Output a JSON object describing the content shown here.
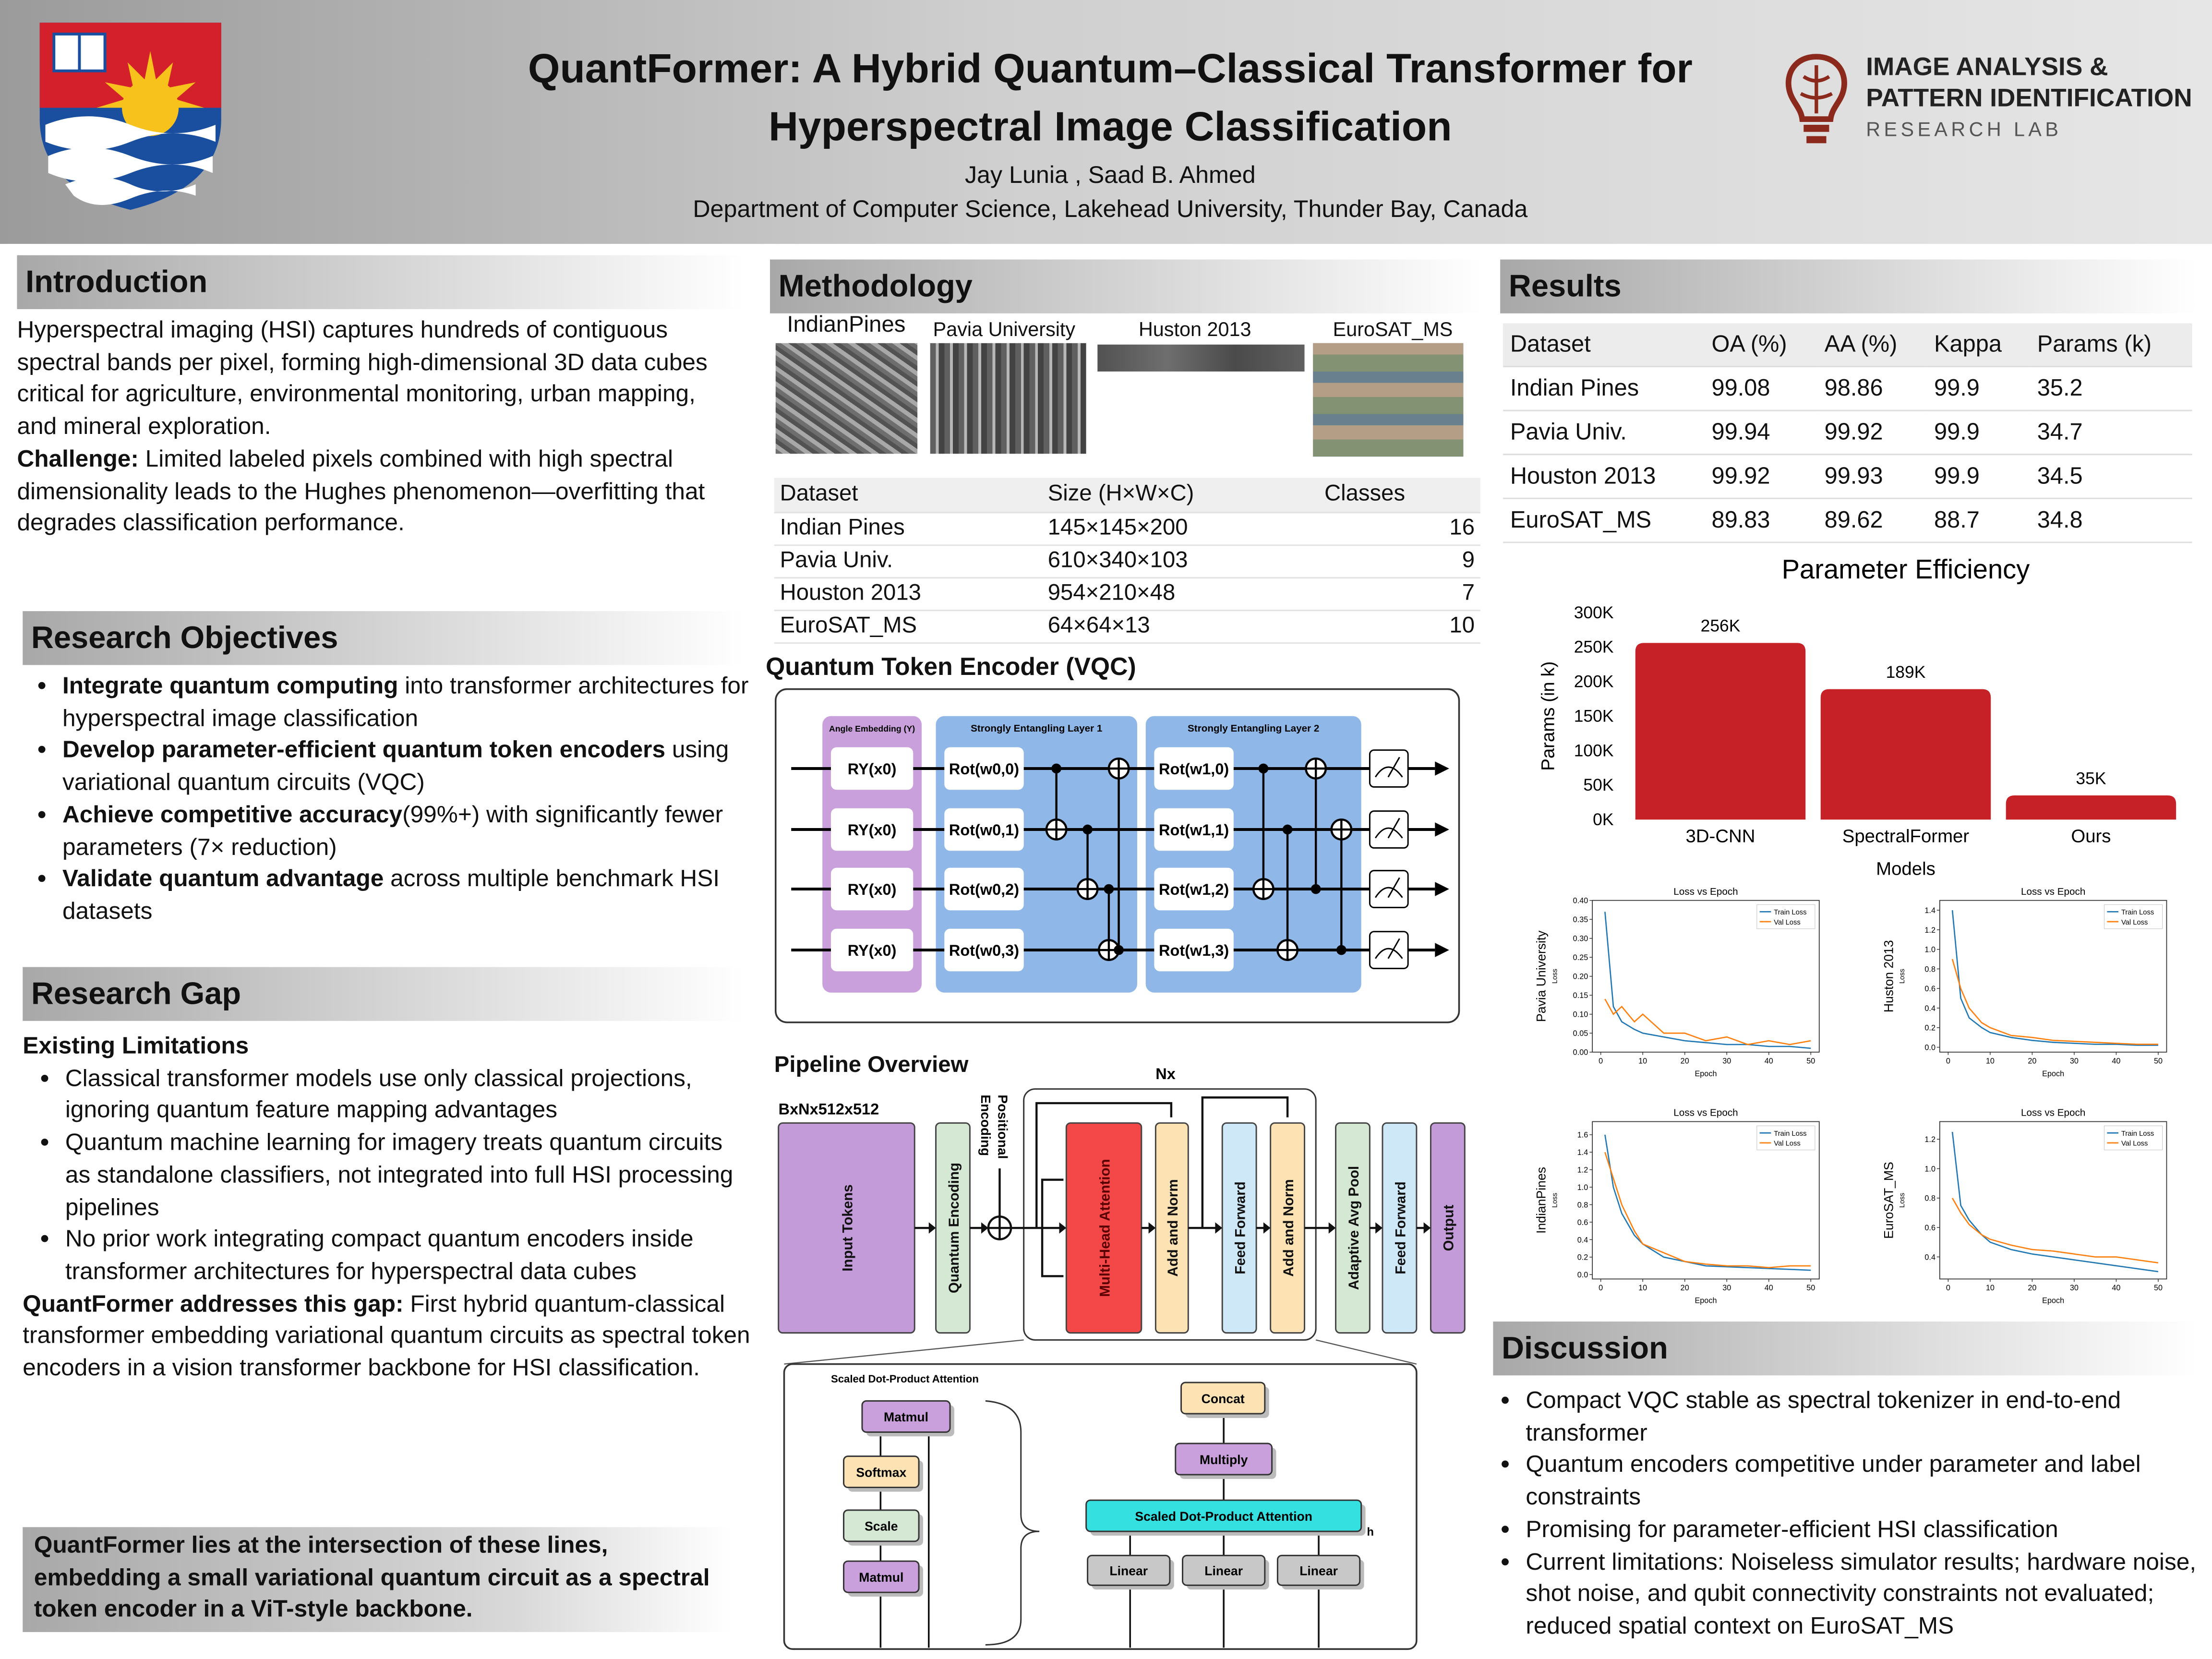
{
  "header": {
    "title_line1": "QuantFormer: A Hybrid Quantum–Classical Transformer for",
    "title_line2": "Hyperspectral Image Classification",
    "authors": "Jay Lunia , Saad B. Ahmed",
    "affiliation": "Department of Computer Science, Lakehead University, Thunder Bay, Canada",
    "lab_line1": "IMAGE ANALYSIS &",
    "lab_line2": "PATTERN IDENTIFICATION",
    "lab_line3": "RESEARCH LAB"
  },
  "introduction": {
    "heading": "Introduction",
    "paragraph": "Hyperspectral imaging (HSI) captures hundreds of contiguous spectral bands per pixel, forming high-dimensional 3D data cubes critical for agriculture, environmental monitoring, urban mapping, and mineral exploration.",
    "challenge_label": "Challenge:",
    "challenge_text": " Limited labeled pixels combined with high spectral dimensionality leads to the Hughes phenomenon—overfitting that degrades classification performance."
  },
  "objectives": {
    "heading": "Research Objectives",
    "items": [
      {
        "bold": "Integrate quantum computing",
        "text": " into transformer architectures for hyperspectral image classification"
      },
      {
        "bold": "Develop parameter-efficient quantum token encoders",
        "text": " using variational quantum circuits (VQC)"
      },
      {
        "bold": "Achieve competitive accuracy",
        "text": "(99%+) with significantly fewer parameters (7× reduction)"
      },
      {
        "bold": "Validate quantum advantage",
        "text": " across multiple benchmark HSI datasets"
      }
    ]
  },
  "gap": {
    "heading": "Research Gap",
    "subheading": "Existing Limitations",
    "items": [
      "Classical transformer models use only classical projections, ignoring quantum feature mapping advantages",
      "Quantum machine learning for imagery treats quantum circuits as standalone classifiers, not integrated into full HSI processing pipelines",
      "No prior work integrating compact quantum encoders inside transformer architectures for hyperspectral data cubes"
    ],
    "addresses_label": "QuantFormer addresses this gap:",
    "addresses_text": " First hybrid quantum-classical transformer embedding variational quantum circuits as spectral token encoders in a vision transformer backbone for HSI classification.",
    "callout": "QuantFormer lies at the intersection of these lines, embedding a small variational quantum circuit as a spectral token encoder in a ViT-style backbone."
  },
  "methodology": {
    "heading": "Methodology",
    "images": [
      "IndianPines",
      "Pavia University",
      "Huston 2013",
      "EuroSAT_MS"
    ],
    "table": {
      "header": [
        "Dataset",
        "Size (H×W×C)",
        "Classes"
      ],
      "rows": [
        [
          "Indian Pines",
          "145×145×200",
          16
        ],
        [
          "Pavia Univ.",
          "610×340×103",
          9
        ],
        [
          "Houston 2013",
          "954×210×48",
          7
        ],
        [
          "EuroSAT_MS",
          "64×64×13",
          10
        ]
      ]
    }
  },
  "vqc": {
    "title": "Quantum Token Encoder (VQC)",
    "embedding_label": "Angle Embedding (Y)",
    "layer1_label": "Strongly Entangling Layer 1",
    "layer2_label": "Strongly Entangling Layer 2",
    "embedding_gates": [
      "RY(x0)",
      "RY(x0)",
      "RY(x0)",
      "RY(x0)"
    ],
    "layer1_gates": [
      "Rot(w0,0)",
      "Rot(w0,1)",
      "Rot(w0,2)",
      "Rot(w0,3)"
    ],
    "layer2_gates": [
      "Rot(w1,0)",
      "Rot(w1,1)",
      "Rot(w1,2)",
      "Rot(w1,3)"
    ]
  },
  "pipeline": {
    "title": "Pipeline Overview",
    "input_shape": "BxNx512x512",
    "repeat_label": "Nx",
    "positional": [
      "Positional",
      "Encoding"
    ],
    "blocks": [
      "Input Tokens",
      "Quantum Encoding",
      "Multi-Head Attention",
      "Add and Norm",
      "Feed Forward",
      "Add and Norm",
      "Adaptive Avg Pool",
      "Feed Forward",
      "Output"
    ],
    "sdpa": {
      "title": "Scaled Dot-Product Attention",
      "steps": [
        "Matmul",
        "Softmax",
        "Scale",
        "Matmul"
      ]
    },
    "mha": {
      "concat": "Concat",
      "multiply": "Multiply",
      "attention": "Scaled Dot-Product Attention",
      "linear": [
        "Linear",
        "Linear",
        "Linear"
      ],
      "heads": "h"
    }
  },
  "results": {
    "heading": "Results",
    "table": {
      "header": [
        "Dataset",
        "OA (%)",
        "AA (%)",
        "Kappa",
        "Params (k)"
      ],
      "rows": [
        [
          "Indian Pines",
          99.08,
          98.86,
          99.9,
          35.2
        ],
        [
          "Pavia Univ.",
          99.94,
          99.92,
          99.9,
          34.7
        ],
        [
          "Houston 2013",
          99.92,
          99.93,
          99.9,
          34.5
        ],
        [
          "EuroSAT_MS",
          89.83,
          89.62,
          88.7,
          34.8
        ]
      ]
    }
  },
  "chart_data": [
    {
      "type": "bar",
      "title": "Parameter Efficiency",
      "xlabel": "Models",
      "ylabel": "Params (in k)",
      "categories": [
        "3D-CNN",
        "SpectralFormer",
        "Ours"
      ],
      "values": [
        256,
        189,
        35
      ],
      "value_labels": [
        "256K",
        "189K",
        "35K"
      ],
      "color": "#c62127",
      "ylim": [
        0,
        300
      ],
      "yticks": [
        {
          "value": 0,
          "label": "0K"
        },
        {
          "value": 50,
          "label": "50K"
        },
        {
          "value": 100,
          "label": "100K"
        },
        {
          "value": 150,
          "label": "150K"
        },
        {
          "value": 200,
          "label": "200K"
        },
        {
          "value": 250,
          "label": "250K"
        },
        {
          "value": 300,
          "label": "300K"
        }
      ]
    },
    {
      "type": "line",
      "title": "Loss vs Epoch",
      "ylabel": "Pavia University",
      "ylabel_small": "Loss",
      "xlabel": "Epoch",
      "x": [
        1,
        3,
        5,
        8,
        10,
        15,
        20,
        25,
        30,
        35,
        40,
        45,
        50
      ],
      "xlim": [
        -2,
        52
      ],
      "xticks": [
        0,
        10,
        20,
        30,
        40,
        50
      ],
      "ylim": [
        0,
        0.4
      ],
      "yticks": [
        {
          "value": 0,
          "label": "0.00"
        },
        0.05,
        {
          "value": 0.1,
          "label": "0.10"
        },
        0.15,
        {
          "value": 0.2,
          "label": "0.20"
        },
        0.25,
        {
          "value": 0.3,
          "label": "0.30"
        },
        0.35,
        {
          "value": 0.4,
          "label": "0.40"
        }
      ],
      "series": [
        {
          "name": "Train Loss",
          "color": "#1f77b4",
          "values": [
            0.37,
            0.12,
            0.08,
            0.06,
            0.05,
            0.04,
            0.03,
            0.025,
            0.02,
            0.02,
            0.015,
            0.015,
            0.01
          ]
        },
        {
          "name": "Val Loss",
          "color": "#ff7f0e",
          "values": [
            0.14,
            0.1,
            0.12,
            0.08,
            0.1,
            0.05,
            0.05,
            0.03,
            0.04,
            0.02,
            0.03,
            0.02,
            0.03
          ]
        }
      ]
    },
    {
      "type": "line",
      "title": "Loss vs Epoch",
      "ylabel": "Huston 2013",
      "ylabel_small": "Loss",
      "xlabel": "Epoch",
      "x": [
        1,
        3,
        5,
        8,
        10,
        15,
        20,
        25,
        30,
        35,
        40,
        45,
        50
      ],
      "xlim": [
        -2,
        52
      ],
      "xticks": [
        0,
        10,
        20,
        30,
        40,
        50
      ],
      "ylim": [
        -0.05,
        1.5
      ],
      "yticks": [
        {
          "value": 0,
          "label": "0.0"
        },
        0.2,
        0.4,
        0.6,
        0.8,
        {
          "value": 1,
          "label": "1.0"
        },
        1.2,
        1.4
      ],
      "series": [
        {
          "name": "Train Loss",
          "color": "#1f77b4",
          "values": [
            1.4,
            0.5,
            0.3,
            0.2,
            0.15,
            0.1,
            0.07,
            0.05,
            0.04,
            0.03,
            0.03,
            0.02,
            0.02
          ]
        },
        {
          "name": "Val Loss",
          "color": "#ff7f0e",
          "values": [
            0.9,
            0.6,
            0.4,
            0.25,
            0.2,
            0.12,
            0.1,
            0.07,
            0.06,
            0.05,
            0.04,
            0.03,
            0.03
          ]
        }
      ]
    },
    {
      "type": "line",
      "title": "Loss vs Epoch",
      "ylabel": "IndianPines",
      "ylabel_small": "Loss",
      "xlabel": "Epoch",
      "x": [
        1,
        3,
        5,
        8,
        10,
        15,
        20,
        25,
        30,
        35,
        40,
        45,
        50
      ],
      "xlim": [
        -2,
        52
      ],
      "xticks": [
        0,
        10,
        20,
        30,
        40,
        50
      ],
      "ylim": [
        -0.05,
        1.75
      ],
      "yticks": [
        {
          "value": 0,
          "label": "0.0"
        },
        0.2,
        0.4,
        0.6,
        0.8,
        {
          "value": 1,
          "label": "1.0"
        },
        1.2,
        1.4,
        1.6
      ],
      "series": [
        {
          "name": "Train Loss",
          "color": "#1f77b4",
          "values": [
            1.6,
            1.0,
            0.7,
            0.45,
            0.35,
            0.2,
            0.15,
            0.1,
            0.09,
            0.08,
            0.07,
            0.06,
            0.05
          ]
        },
        {
          "name": "Val Loss",
          "color": "#ff7f0e",
          "values": [
            1.4,
            1.1,
            0.8,
            0.5,
            0.35,
            0.25,
            0.15,
            0.12,
            0.1,
            0.1,
            0.08,
            0.1,
            0.1
          ]
        }
      ]
    },
    {
      "type": "line",
      "title": "Loss vs Epoch",
      "ylabel": "EuroSAT_MS",
      "ylabel_small": "Loss",
      "xlabel": "Epoch",
      "x": [
        1,
        3,
        5,
        8,
        10,
        15,
        20,
        25,
        30,
        35,
        40,
        45,
        50
      ],
      "xlim": [
        -2,
        52
      ],
      "xticks": [
        0,
        10,
        20,
        30,
        40,
        50
      ],
      "ylim": [
        0.25,
        1.32
      ],
      "yticks": [
        0.4,
        0.6,
        0.8,
        {
          "value": 1,
          "label": "1.0"
        },
        1.2
      ],
      "series": [
        {
          "name": "Train Loss",
          "color": "#1f77b4",
          "values": [
            1.25,
            0.75,
            0.65,
            0.55,
            0.5,
            0.45,
            0.42,
            0.4,
            0.38,
            0.36,
            0.34,
            0.32,
            0.3
          ]
        },
        {
          "name": "Val Loss",
          "color": "#ff7f0e",
          "values": [
            0.8,
            0.7,
            0.62,
            0.55,
            0.52,
            0.48,
            0.45,
            0.44,
            0.42,
            0.4,
            0.4,
            0.38,
            0.36
          ]
        }
      ]
    }
  ],
  "discussion": {
    "heading": "Discussion",
    "items": [
      "Compact VQC stable as spectral tokenizer in end-to-end transformer",
      "Quantum encoders competitive under parameter and label constraints",
      "Promising for parameter-efficient HSI classification",
      "Current limitations: Noiseless simulator results; hardware noise, shot noise, and qubit connectivity constraints not evaluated; reduced spatial context on EuroSAT_MS"
    ]
  }
}
